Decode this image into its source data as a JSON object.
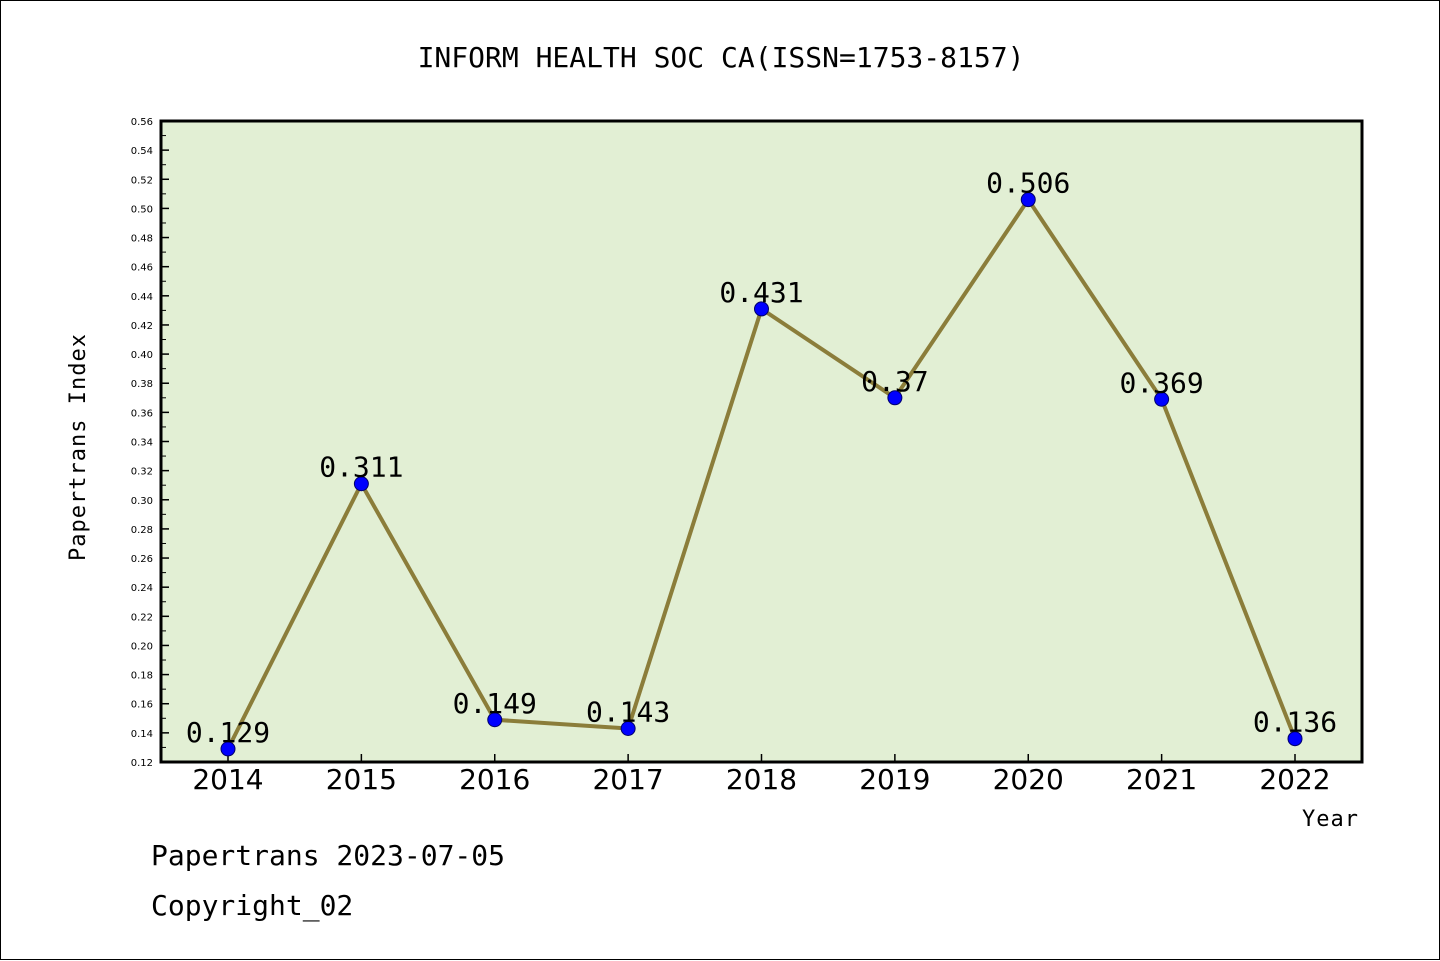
{
  "chart_data": {
    "type": "line",
    "title": "INFORM HEALTH SOC CA(ISSN=1753-8157)",
    "xlabel": "Year",
    "ylabel": "Papertrans Index",
    "categories": [
      "2014",
      "2015",
      "2016",
      "2017",
      "2018",
      "2019",
      "2020",
      "2021",
      "2022"
    ],
    "values": [
      0.129,
      0.311,
      0.149,
      0.143,
      0.431,
      0.37,
      0.506,
      0.369,
      0.136
    ],
    "data_labels": [
      "0.129",
      "0.311",
      "0.149",
      "0.143",
      "0.431",
      "0.37",
      "0.506",
      "0.369",
      "0.136"
    ],
    "ylim": [
      0.12,
      0.56
    ],
    "yticks": [
      "0.12",
      "0.14",
      "0.16",
      "0.18",
      "0.20",
      "0.22",
      "0.24",
      "0.26",
      "0.28",
      "0.30",
      "0.32",
      "0.34",
      "0.36",
      "0.38",
      "0.40",
      "0.42",
      "0.44",
      "0.46",
      "0.48",
      "0.50",
      "0.52",
      "0.54",
      "0.56"
    ],
    "grid": false,
    "colors": {
      "plot_background": "#e2efd4",
      "line": "#8b7d3a",
      "marker": "#0000ff"
    }
  },
  "footer": {
    "date_line": "Papertrans 2023-07-05",
    "copyright": "Copyright_02"
  }
}
